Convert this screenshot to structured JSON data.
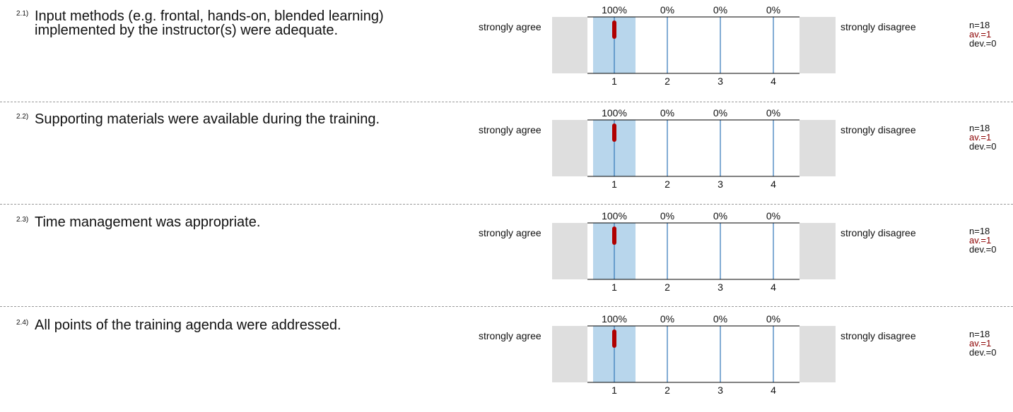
{
  "colors": {
    "bar": "#b8d6ec",
    "axis_line": "#2e75b6",
    "mean_marker": "#b00000",
    "side_box": "#dedede",
    "avg_text": "#8b0000"
  },
  "scale": {
    "ticks": [
      "1",
      "2",
      "3",
      "4"
    ],
    "left_label": "strongly agree",
    "right_label": "strongly disagree"
  },
  "chart_data": [
    {
      "type": "bar",
      "number": "2.1)",
      "question": "Input methods (e.g. frontal, hands-on, blended learning) implemented by the instructor(s) were adequate.",
      "categories": [
        "1",
        "2",
        "3",
        "4"
      ],
      "values": [
        100,
        0,
        0,
        0
      ],
      "value_labels": [
        "100%",
        "0%",
        "0%",
        "0%"
      ],
      "n": "n=18",
      "mean": 1,
      "av": "av.=1",
      "dev": "dev.=0"
    },
    {
      "type": "bar",
      "number": "2.2)",
      "question": "Supporting materials were available during the training.",
      "categories": [
        "1",
        "2",
        "3",
        "4"
      ],
      "values": [
        100,
        0,
        0,
        0
      ],
      "value_labels": [
        "100%",
        "0%",
        "0%",
        "0%"
      ],
      "n": "n=18",
      "mean": 1,
      "av": "av.=1",
      "dev": "dev.=0"
    },
    {
      "type": "bar",
      "number": "2.3)",
      "question": "Time management was appropriate.",
      "categories": [
        "1",
        "2",
        "3",
        "4"
      ],
      "values": [
        100,
        0,
        0,
        0
      ],
      "value_labels": [
        "100%",
        "0%",
        "0%",
        "0%"
      ],
      "n": "n=18",
      "mean": 1,
      "av": "av.=1",
      "dev": "dev.=0"
    },
    {
      "type": "bar",
      "number": "2.4)",
      "question": "All points of the training agenda were addressed.",
      "categories": [
        "1",
        "2",
        "3",
        "4"
      ],
      "values": [
        100,
        0,
        0,
        0
      ],
      "value_labels": [
        "100%",
        "0%",
        "0%",
        "0%"
      ],
      "n": "n=18",
      "mean": 1,
      "av": "av.=1",
      "dev": "dev.=0"
    }
  ]
}
